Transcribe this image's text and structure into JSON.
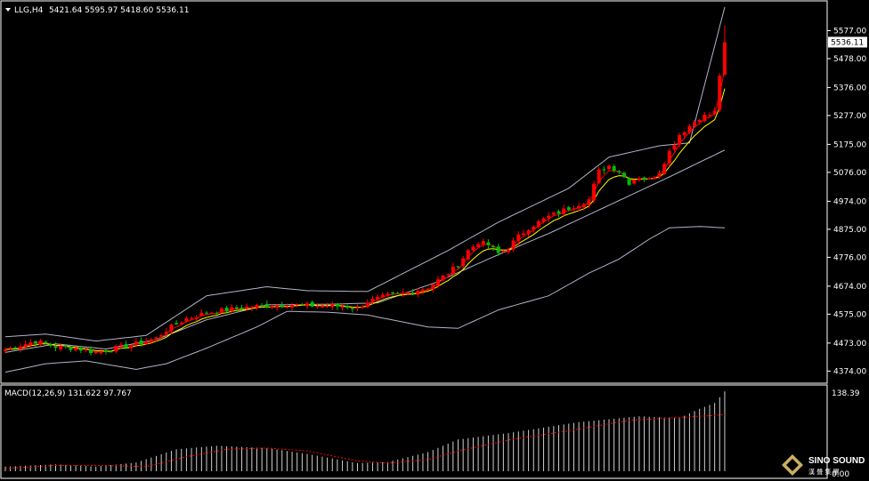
{
  "header": {
    "symbol": "LLG,H4",
    "ohlc": "5421.64 5595.97 5418.60 5536.11"
  },
  "macd": {
    "label": "MACD(12,26,9) 131.622 97.767",
    "axis_top": "138.39",
    "axis_bottom": "0.00"
  },
  "logo": {
    "text": "SINO SOUND",
    "subtext": "漢 聲 集 團"
  },
  "colors": {
    "bull": "#ff0000",
    "bear": "#00c000",
    "ma_fast": "#ff0000",
    "ma_slow": "#ffff00",
    "bands": "#b0b4c8",
    "macd_hist": "#d0d0d0",
    "macd_signal": "#ff0000",
    "grid": "#ffffff"
  },
  "chart_data": {
    "type": "candlestick",
    "symbol": "LLG",
    "timeframe": "H4",
    "current_price": 5536.11,
    "y_ticks": [
      5577.0,
      5478.0,
      5376.0,
      5277.0,
      5175.0,
      5076.0,
      4974.0,
      4875.0,
      4776.0,
      4674.0,
      4575.0,
      4473.0,
      4374.0
    ],
    "ylim": [
      4350,
      5660
    ],
    "anchors_close": [
      [
        0,
        4450
      ],
      [
        6,
        4480
      ],
      [
        10,
        4460
      ],
      [
        14,
        4455
      ],
      [
        18,
        4440
      ],
      [
        22,
        4455
      ],
      [
        26,
        4470
      ],
      [
        30,
        4490
      ],
      [
        32,
        4520
      ],
      [
        36,
        4560
      ],
      [
        40,
        4580
      ],
      [
        44,
        4590
      ],
      [
        48,
        4600
      ],
      [
        52,
        4605
      ],
      [
        56,
        4610
      ],
      [
        60,
        4605
      ],
      [
        64,
        4605
      ],
      [
        68,
        4602
      ],
      [
        70,
        4595
      ],
      [
        72,
        4620
      ],
      [
        76,
        4640
      ],
      [
        80,
        4650
      ],
      [
        84,
        4670
      ],
      [
        88,
        4720
      ],
      [
        90,
        4750
      ],
      [
        92,
        4800
      ],
      [
        94,
        4830
      ],
      [
        96,
        4820
      ],
      [
        98,
        4790
      ],
      [
        100,
        4810
      ],
      [
        102,
        4850
      ],
      [
        104,
        4880
      ],
      [
        108,
        4920
      ],
      [
        112,
        4950
      ],
      [
        116,
        4980
      ],
      [
        118,
        5080
      ],
      [
        120,
        5100
      ],
      [
        122,
        5080
      ],
      [
        124,
        5040
      ],
      [
        126,
        5060
      ],
      [
        128,
        5050
      ],
      [
        130,
        5080
      ],
      [
        132,
        5150
      ],
      [
        134,
        5210
      ],
      [
        136,
        5240
      ],
      [
        138,
        5270
      ],
      [
        140,
        5280
      ],
      [
        141,
        5290
      ],
      [
        142,
        5420
      ],
      [
        143,
        5536
      ]
    ],
    "bb_upper": [
      [
        0,
        4495
      ],
      [
        8,
        4505
      ],
      [
        18,
        4480
      ],
      [
        28,
        4500
      ],
      [
        40,
        4640
      ],
      [
        52,
        4672
      ],
      [
        60,
        4658
      ],
      [
        72,
        4655
      ],
      [
        88,
        4800
      ],
      [
        98,
        4900
      ],
      [
        112,
        5020
      ],
      [
        120,
        5130
      ],
      [
        130,
        5170
      ],
      [
        136,
        5180
      ],
      [
        143,
        5660
      ]
    ],
    "bb_mid": [
      [
        0,
        4440
      ],
      [
        10,
        4470
      ],
      [
        20,
        4452
      ],
      [
        30,
        4485
      ],
      [
        40,
        4555
      ],
      [
        52,
        4608
      ],
      [
        64,
        4610
      ],
      [
        74,
        4615
      ],
      [
        86,
        4690
      ],
      [
        96,
        4770
      ],
      [
        108,
        4860
      ],
      [
        120,
        4960
      ],
      [
        132,
        5060
      ],
      [
        143,
        5155
      ]
    ],
    "bb_lower": [
      [
        0,
        4370
      ],
      [
        8,
        4400
      ],
      [
        16,
        4410
      ],
      [
        26,
        4380
      ],
      [
        32,
        4400
      ],
      [
        40,
        4455
      ],
      [
        50,
        4530
      ],
      [
        56,
        4585
      ],
      [
        64,
        4582
      ],
      [
        72,
        4572
      ],
      [
        84,
        4530
      ],
      [
        90,
        4525
      ],
      [
        98,
        4590
      ],
      [
        108,
        4640
      ],
      [
        116,
        4720
      ],
      [
        122,
        4770
      ],
      [
        128,
        4840
      ],
      [
        132,
        4880
      ],
      [
        138,
        4885
      ],
      [
        143,
        4880
      ]
    ],
    "macd_ylim": [
      0,
      138.39
    ],
    "macd_hist_anchors": [
      [
        0,
        8
      ],
      [
        10,
        12
      ],
      [
        18,
        8
      ],
      [
        26,
        15
      ],
      [
        34,
        38
      ],
      [
        42,
        44
      ],
      [
        52,
        40
      ],
      [
        60,
        30
      ],
      [
        70,
        14
      ],
      [
        76,
        16
      ],
      [
        84,
        33
      ],
      [
        90,
        55
      ],
      [
        100,
        66
      ],
      [
        114,
        85
      ],
      [
        126,
        95
      ],
      [
        134,
        92
      ],
      [
        138,
        108
      ],
      [
        141,
        118
      ],
      [
        143,
        138
      ]
    ],
    "macd_signal_anchors": [
      [
        0,
        5
      ],
      [
        10,
        10
      ],
      [
        20,
        10
      ],
      [
        28,
        8
      ],
      [
        36,
        25
      ],
      [
        44,
        38
      ],
      [
        52,
        40
      ],
      [
        60,
        35
      ],
      [
        70,
        18
      ],
      [
        76,
        14
      ],
      [
        84,
        20
      ],
      [
        90,
        35
      ],
      [
        100,
        54
      ],
      [
        112,
        70
      ],
      [
        124,
        88
      ],
      [
        132,
        92
      ],
      [
        140,
        96
      ],
      [
        143,
        98
      ]
    ]
  }
}
